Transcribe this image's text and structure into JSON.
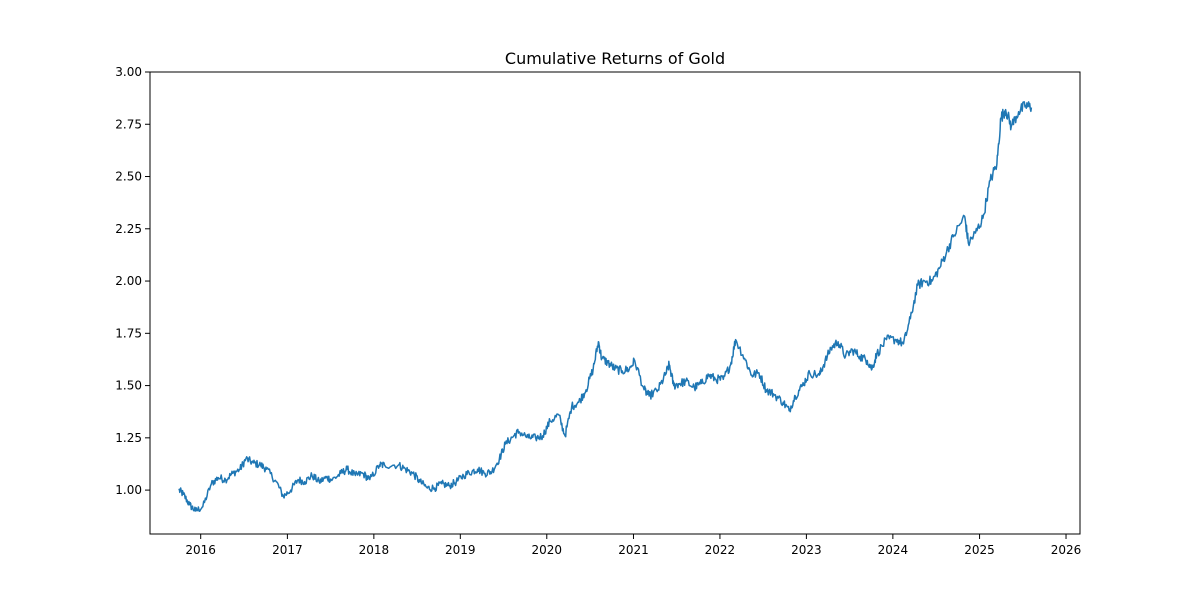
{
  "chart_data": {
    "type": "line",
    "title": "Cumulative Returns of Gold",
    "xlabel": "",
    "ylabel": "",
    "x_ticks": [
      "2016",
      "2017",
      "2018",
      "2019",
      "2020",
      "2021",
      "2022",
      "2023",
      "2024",
      "2025",
      "2026"
    ],
    "y_ticks": [
      "1.00",
      "1.25",
      "1.50",
      "1.75",
      "2.00",
      "2.25",
      "2.50",
      "2.75",
      "3.00"
    ],
    "xlim": [
      "2015-06-01",
      "2026-03-01"
    ],
    "ylim": [
      0.79,
      3.0
    ],
    "grid": false,
    "legend": "none",
    "colors": {
      "line": "#1f77b4",
      "axes": "#000000",
      "background": "#ffffff"
    },
    "series": [
      {
        "x": [
          "2015-10-01",
          "2015-10-20",
          "2015-11-15",
          "2015-12-10",
          "2016-01-10",
          "2016-02-15",
          "2016-03-15",
          "2016-04-15",
          "2016-05-15",
          "2016-06-15",
          "2016-07-10",
          "2016-08-10",
          "2016-09-10",
          "2016-10-05",
          "2016-11-15",
          "2016-12-15",
          "2017-01-15",
          "2017-02-15",
          "2017-03-15",
          "2017-04-15",
          "2017-05-15",
          "2017-06-15",
          "2017-07-10",
          "2017-08-15",
          "2017-09-10",
          "2017-10-15",
          "2017-11-15",
          "2017-12-15",
          "2018-01-25",
          "2018-02-15",
          "2018-04-15",
          "2018-05-15",
          "2018-06-15",
          "2018-07-15",
          "2018-08-15",
          "2018-09-15",
          "2018-10-15",
          "2018-11-15",
          "2018-12-15",
          "2019-01-15",
          "2019-02-20",
          "2019-03-15",
          "2019-04-15",
          "2019-05-15",
          "2019-06-15",
          "2019-07-10",
          "2019-08-15",
          "2019-09-05",
          "2019-10-15",
          "2019-11-15",
          "2019-12-15",
          "2020-01-15",
          "2020-02-20",
          "2020-03-18",
          "2020-04-15",
          "2020-05-15",
          "2020-06-15",
          "2020-07-15",
          "2020-08-06",
          "2020-08-20",
          "2020-09-15",
          "2020-10-15",
          "2020-11-15",
          "2020-12-15",
          "2021-01-06",
          "2021-02-15",
          "2021-03-08",
          "2021-04-15",
          "2021-05-15",
          "2021-06-01",
          "2021-06-20",
          "2021-07-15",
          "2021-08-10",
          "2021-09-15",
          "2021-10-15",
          "2021-11-15",
          "2021-12-15",
          "2022-01-15",
          "2022-02-15",
          "2022-03-08",
          "2022-04-15",
          "2022-05-15",
          "2022-06-15",
          "2022-07-15",
          "2022-08-15",
          "2022-09-25",
          "2022-10-20",
          "2022-11-15",
          "2022-12-15",
          "2023-01-15",
          "2023-02-25",
          "2023-03-15",
          "2023-04-15",
          "2023-05-15",
          "2023-06-15",
          "2023-07-15",
          "2023-08-15",
          "2023-09-15",
          "2023-10-05",
          "2023-10-25",
          "2023-12-05",
          "2024-01-15",
          "2024-02-15",
          "2024-03-15",
          "2024-04-15",
          "2024-05-15",
          "2024-06-15",
          "2024-07-15",
          "2024-08-15",
          "2024-09-15",
          "2024-10-30",
          "2024-11-15",
          "2024-12-15",
          "2025-01-15",
          "2025-02-15",
          "2025-03-15",
          "2025-04-01",
          "2025-04-21",
          "2025-05-15",
          "2025-06-15",
          "2025-07-15",
          "2025-08-08"
        ],
        "values": [
          1.0,
          0.98,
          0.93,
          0.9,
          0.92,
          1.03,
          1.06,
          1.05,
          1.08,
          1.1,
          1.15,
          1.13,
          1.12,
          1.1,
          1.04,
          0.97,
          1.0,
          1.05,
          1.04,
          1.07,
          1.04,
          1.06,
          1.05,
          1.08,
          1.1,
          1.07,
          1.08,
          1.05,
          1.12,
          1.12,
          1.12,
          1.1,
          1.08,
          1.04,
          1.01,
          1.01,
          1.03,
          1.02,
          1.04,
          1.07,
          1.09,
          1.1,
          1.08,
          1.09,
          1.15,
          1.22,
          1.26,
          1.28,
          1.25,
          1.25,
          1.26,
          1.33,
          1.36,
          1.26,
          1.4,
          1.42,
          1.48,
          1.58,
          1.71,
          1.63,
          1.61,
          1.58,
          1.57,
          1.58,
          1.62,
          1.48,
          1.45,
          1.48,
          1.55,
          1.6,
          1.5,
          1.51,
          1.52,
          1.49,
          1.51,
          1.55,
          1.53,
          1.53,
          1.6,
          1.72,
          1.63,
          1.55,
          1.56,
          1.48,
          1.46,
          1.42,
          1.38,
          1.45,
          1.5,
          1.56,
          1.55,
          1.6,
          1.68,
          1.71,
          1.64,
          1.67,
          1.64,
          1.62,
          1.58,
          1.65,
          1.72,
          1.72,
          1.7,
          1.82,
          1.98,
          2.0,
          2.0,
          2.06,
          2.14,
          2.22,
          2.31,
          2.18,
          2.23,
          2.3,
          2.48,
          2.56,
          2.78,
          2.82,
          2.74,
          2.81,
          2.84,
          2.83
        ]
      }
    ]
  }
}
